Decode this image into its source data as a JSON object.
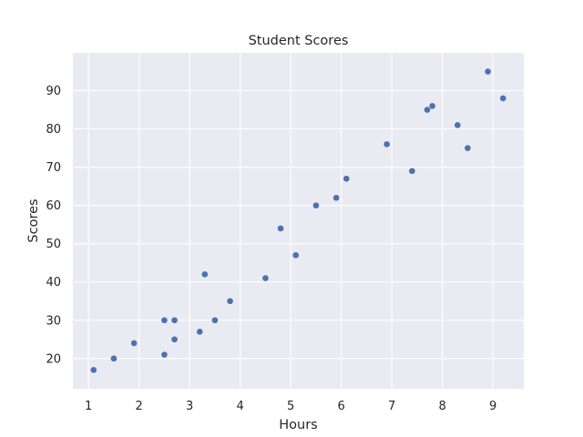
{
  "chart_data": {
    "type": "scatter",
    "title": "Student Scores",
    "xlabel": "Hours",
    "ylabel": "Scores",
    "xlim": [
      0.69,
      9.61
    ],
    "ylim": [
      12.1,
      99.9
    ],
    "xticks": [
      1,
      2,
      3,
      4,
      5,
      6,
      7,
      8,
      9
    ],
    "yticks": [
      20,
      30,
      40,
      50,
      60,
      70,
      80,
      90
    ],
    "grid": true,
    "series": [
      {
        "color": "#4c72b0",
        "x": [
          2.5,
          5.1,
          3.2,
          8.5,
          3.5,
          1.5,
          9.2,
          5.5,
          8.3,
          2.7,
          7.7,
          5.9,
          4.5,
          3.3,
          1.1,
          8.9,
          2.5,
          1.9,
          6.1,
          7.4,
          2.7,
          4.8,
          3.8,
          6.9,
          7.8
        ],
        "y": [
          21,
          47,
          27,
          75,
          30,
          20,
          88,
          60,
          81,
          25,
          85,
          62,
          41,
          42,
          17,
          95,
          30,
          24,
          67,
          69,
          30,
          54,
          35,
          76,
          86
        ]
      }
    ],
    "colors": {
      "plot_background": "#eaeaf2",
      "grid": "#ffffff",
      "text": "#262626"
    }
  }
}
